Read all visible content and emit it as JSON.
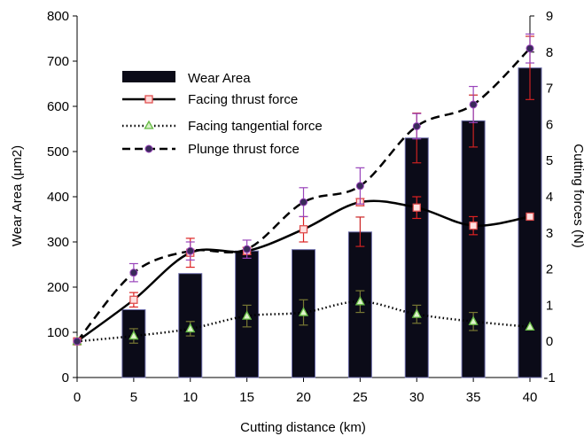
{
  "chart_data": {
    "type": "bar",
    "x": [
      0,
      5,
      10,
      15,
      20,
      25,
      30,
      35,
      40
    ],
    "xlabel": "Cutting distance (km)",
    "ylabel_left": "Wear Area (μm2)",
    "ylabel_right": "Cutting forces (N)",
    "xlim": [
      0,
      40
    ],
    "ylim_left": [
      0,
      800
    ],
    "ylim_right": [
      -1,
      9
    ],
    "x_ticks": [
      "0",
      "5",
      "10",
      "15",
      "20",
      "25",
      "30",
      "35",
      "40"
    ],
    "y_ticks_left": [
      "0",
      "100",
      "200",
      "300",
      "400",
      "500",
      "600",
      "700",
      "800"
    ],
    "y_ticks_right": [
      "-1",
      "0",
      "1",
      "2",
      "3",
      "4",
      "5",
      "6",
      "7",
      "8",
      "9"
    ],
    "grid": false,
    "legend_position": "top-left",
    "series": [
      {
        "name": "Wear Area",
        "kind": "bar",
        "axis": "left",
        "color": "#0b0b18",
        "values": [
          null,
          150,
          230,
          280,
          283,
          322,
          530,
          568,
          685
        ],
        "error_low": [
          null,
          null,
          null,
          null,
          null,
          290,
          475,
          510,
          615
        ],
        "error_high": [
          null,
          null,
          null,
          null,
          null,
          355,
          585,
          625,
          755
        ]
      },
      {
        "name": "Facing thrust force",
        "kind": "line",
        "style": "solid",
        "marker": "square",
        "axis": "right",
        "color": "#000000",
        "marker_color": "#e05050",
        "error_color": "#dd2222",
        "values": [
          0.0,
          1.15,
          2.45,
          2.5,
          3.1,
          3.85,
          3.7,
          3.2,
          3.45
        ],
        "error": [
          null,
          0.2,
          0.4,
          0.1,
          0.35,
          0.1,
          0.3,
          0.25,
          null
        ]
      },
      {
        "name": "Facing tangential force",
        "kind": "line",
        "style": "dotted",
        "marker": "triangle",
        "axis": "right",
        "color": "#000000",
        "marker_color": "#66bb44",
        "error_color": "#777733",
        "values": [
          0.0,
          0.15,
          0.35,
          0.7,
          0.8,
          1.1,
          0.75,
          0.55,
          0.4
        ],
        "error": [
          null,
          0.2,
          0.2,
          0.3,
          0.35,
          0.3,
          0.25,
          0.25,
          null
        ]
      },
      {
        "name": "Plunge thrust force",
        "kind": "line",
        "style": "dashed",
        "marker": "circle",
        "axis": "right",
        "color": "#000000",
        "marker_color": "#3a2a5a",
        "error_color": "#9944bb",
        "values": [
          0.0,
          1.9,
          2.5,
          2.55,
          3.85,
          4.3,
          5.95,
          6.55,
          8.1
        ],
        "error": [
          null,
          0.25,
          0.25,
          0.25,
          0.4,
          0.5,
          0.35,
          0.5,
          0.4
        ]
      }
    ]
  }
}
